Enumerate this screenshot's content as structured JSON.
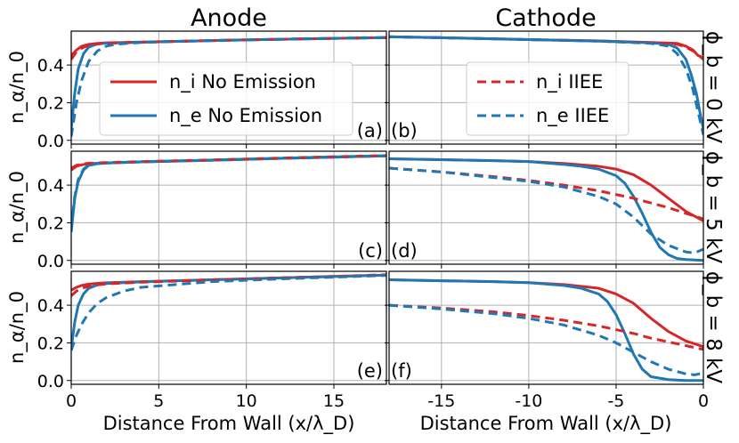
{
  "colors": {
    "ion": "#d62728",
    "electron": "#1f77b4",
    "grid": "#b0b0b0"
  },
  "labels": {
    "anode": "Anode",
    "cathode": "Cathode",
    "xlabel": "Distance From Wall (x/λ_D)",
    "ylabel": "n_α/n_0",
    "rows": [
      "ϕ_b = 0 kV",
      "ϕ_b = 5 kV",
      "ϕ_b = 8 kV"
    ],
    "panels": [
      "(a)",
      "(b)",
      "(c)",
      "(d)",
      "(e)",
      "(f)"
    ]
  },
  "legend": {
    "left": [
      {
        "label": "n_i No Emission",
        "series": "ni_noemission"
      },
      {
        "label": "n_e No Emission",
        "series": "ne_noemission"
      }
    ],
    "right": [
      {
        "label": "n_i IIEE",
        "series": "ni_iiee"
      },
      {
        "label": "n_e IIEE",
        "series": "ne_iiee"
      }
    ]
  },
  "chart_data": [
    {
      "type": "line",
      "panel": "(a)",
      "region": "anode",
      "bias": "0 kV",
      "xlim": [
        0,
        18
      ],
      "ylim": [
        -0.02,
        0.58
      ],
      "xticks": [
        0,
        5,
        10,
        15
      ],
      "yticks": [
        0.0,
        0.2,
        0.4
      ],
      "series": [
        {
          "name": "n_i No Emission",
          "style": "solid",
          "color": "#d62728",
          "x": [
            0,
            0.3,
            0.6,
            1,
            1.5,
            2,
            4,
            8,
            12,
            16,
            18
          ],
          "y": [
            0.45,
            0.48,
            0.5,
            0.51,
            0.515,
            0.518,
            0.522,
            0.53,
            0.537,
            0.543,
            0.546
          ]
        },
        {
          "name": "n_e No Emission",
          "style": "solid",
          "color": "#1f77b4",
          "x": [
            0,
            0.2,
            0.4,
            0.7,
            1,
            1.5,
            2,
            4,
            8,
            12,
            16,
            18
          ],
          "y": [
            0.06,
            0.25,
            0.38,
            0.46,
            0.495,
            0.512,
            0.516,
            0.521,
            0.53,
            0.537,
            0.543,
            0.546
          ]
        },
        {
          "name": "n_i IIEE",
          "style": "dashed",
          "color": "#d62728",
          "x": [
            0,
            0.3,
            0.6,
            1,
            1.5,
            2,
            4,
            8,
            12,
            16,
            18
          ],
          "y": [
            0.43,
            0.47,
            0.49,
            0.505,
            0.512,
            0.516,
            0.521,
            0.53,
            0.537,
            0.543,
            0.546
          ]
        },
        {
          "name": "n_e IIEE",
          "style": "dashed",
          "color": "#1f77b4",
          "x": [
            0,
            0.3,
            0.6,
            1,
            1.5,
            2,
            2.5,
            4,
            8,
            12,
            16,
            18
          ],
          "y": [
            0.02,
            0.2,
            0.32,
            0.42,
            0.475,
            0.5,
            0.51,
            0.52,
            0.53,
            0.537,
            0.543,
            0.546
          ]
        }
      ]
    },
    {
      "type": "line",
      "panel": "(b)",
      "region": "cathode",
      "bias": "0 kV",
      "xlim": [
        -18,
        0
      ],
      "ylim": [
        -0.02,
        0.58
      ],
      "xticks": [
        -15,
        -10,
        -5,
        0
      ],
      "yticks": [
        0.0,
        0.2,
        0.4
      ],
      "series": [
        {
          "name": "n_i No Emission",
          "style": "solid",
          "color": "#d62728",
          "x": [
            -18,
            -15,
            -10,
            -6,
            -3,
            -1.5,
            -1,
            -0.6,
            -0.3,
            0
          ],
          "y": [
            0.55,
            0.545,
            0.535,
            0.528,
            0.52,
            0.515,
            0.5,
            0.48,
            0.45,
            0.44
          ]
        },
        {
          "name": "n_e No Emission",
          "style": "solid",
          "color": "#1f77b4",
          "x": [
            -18,
            -15,
            -10,
            -6,
            -3,
            -2,
            -1.5,
            -1,
            -0.7,
            -0.4,
            -0.2,
            0
          ],
          "y": [
            0.55,
            0.545,
            0.535,
            0.527,
            0.518,
            0.51,
            0.49,
            0.43,
            0.35,
            0.25,
            0.15,
            0.06
          ]
        },
        {
          "name": "n_i IIEE",
          "style": "dashed",
          "color": "#d62728",
          "x": [
            -18,
            -15,
            -10,
            -6,
            -3,
            -1.5,
            -1,
            -0.5,
            0
          ],
          "y": [
            0.55,
            0.545,
            0.535,
            0.528,
            0.518,
            0.51,
            0.495,
            0.47,
            0.43
          ]
        },
        {
          "name": "n_e IIEE",
          "style": "dashed",
          "color": "#1f77b4",
          "x": [
            -18,
            -15,
            -10,
            -6,
            -3,
            -2,
            -1.5,
            -1,
            -0.6,
            -0.3,
            0
          ],
          "y": [
            0.55,
            0.545,
            0.535,
            0.527,
            0.515,
            0.5,
            0.46,
            0.38,
            0.27,
            0.15,
            0.03
          ]
        }
      ]
    },
    {
      "type": "line",
      "panel": "(c)",
      "region": "anode",
      "bias": "5 kV",
      "xlim": [
        0,
        18
      ],
      "ylim": [
        -0.02,
        0.58
      ],
      "xticks": [
        0,
        5,
        10,
        15
      ],
      "yticks": [
        0.0,
        0.2,
        0.4
      ],
      "series": [
        {
          "name": "n_i No Emission",
          "style": "solid",
          "color": "#d62728",
          "x": [
            0,
            0.3,
            0.6,
            1,
            1.5,
            2,
            4,
            8,
            12,
            16,
            18
          ],
          "y": [
            0.48,
            0.5,
            0.508,
            0.513,
            0.516,
            0.518,
            0.523,
            0.532,
            0.542,
            0.551,
            0.555
          ]
        },
        {
          "name": "n_e No Emission",
          "style": "solid",
          "color": "#1f77b4",
          "x": [
            0,
            0.2,
            0.4,
            0.7,
            1,
            1.5,
            2,
            4,
            8,
            12,
            16,
            18
          ],
          "y": [
            0.15,
            0.33,
            0.42,
            0.48,
            0.505,
            0.514,
            0.517,
            0.523,
            0.532,
            0.542,
            0.551,
            0.555
          ]
        },
        {
          "name": "n_i IIEE",
          "style": "dashed",
          "color": "#d62728",
          "x": [
            0,
            0.3,
            0.6,
            1,
            1.5,
            2,
            4,
            8,
            12,
            16,
            18
          ],
          "y": [
            0.49,
            0.505,
            0.512,
            0.516,
            0.518,
            0.52,
            0.525,
            0.534,
            0.544,
            0.553,
            0.557
          ]
        },
        {
          "name": "n_e IIEE",
          "style": "dashed",
          "color": "#1f77b4",
          "x": [
            0,
            0.2,
            0.4,
            0.7,
            1,
            1.5,
            2,
            4,
            8,
            12,
            16,
            18
          ],
          "y": [
            0.17,
            0.34,
            0.43,
            0.485,
            0.505,
            0.515,
            0.518,
            0.524,
            0.533,
            0.543,
            0.552,
            0.556
          ]
        }
      ]
    },
    {
      "type": "line",
      "panel": "(d)",
      "region": "cathode",
      "bias": "5 kV",
      "xlim": [
        -18,
        0
      ],
      "ylim": [
        -0.02,
        0.58
      ],
      "xticks": [
        -15,
        -10,
        -5,
        0
      ],
      "yticks": [
        0.0,
        0.2,
        0.4
      ],
      "series": [
        {
          "name": "n_i No Emission",
          "style": "solid",
          "color": "#d62728",
          "x": [
            -18,
            -15,
            -12,
            -10,
            -8,
            -6,
            -5,
            -4,
            -3,
            -2,
            -1,
            0
          ],
          "y": [
            0.54,
            0.535,
            0.53,
            0.525,
            0.515,
            0.5,
            0.485,
            0.455,
            0.4,
            0.33,
            0.26,
            0.21
          ]
        },
        {
          "name": "n_e No Emission",
          "style": "solid",
          "color": "#1f77b4",
          "x": [
            -18,
            -15,
            -12,
            -10,
            -8,
            -7,
            -6,
            -5,
            -4.5,
            -4,
            -3.5,
            -3,
            -2.5,
            -2,
            -1.5,
            -1,
            0
          ],
          "y": [
            0.54,
            0.535,
            0.53,
            0.525,
            0.51,
            0.5,
            0.485,
            0.45,
            0.41,
            0.34,
            0.25,
            0.15,
            0.07,
            0.03,
            0.01,
            0.005,
            0.0
          ]
        },
        {
          "name": "n_i IIEE",
          "style": "dashed",
          "color": "#d62728",
          "x": [
            -18,
            -15,
            -12,
            -10,
            -8,
            -6,
            -4,
            -3,
            -2,
            -1,
            0
          ],
          "y": [
            0.49,
            0.47,
            0.445,
            0.425,
            0.4,
            0.37,
            0.33,
            0.305,
            0.28,
            0.25,
            0.22
          ]
        },
        {
          "name": "n_e IIEE",
          "style": "dashed",
          "color": "#1f77b4",
          "x": [
            -18,
            -15,
            -12,
            -10,
            -8,
            -6,
            -5,
            -4,
            -3,
            -2,
            -1,
            -0.5,
            0
          ],
          "y": [
            0.49,
            0.47,
            0.44,
            0.42,
            0.39,
            0.34,
            0.3,
            0.23,
            0.14,
            0.08,
            0.045,
            0.04,
            0.06
          ]
        }
      ]
    },
    {
      "type": "line",
      "panel": "(e)",
      "region": "anode",
      "bias": "8 kV",
      "xlim": [
        0,
        18
      ],
      "ylim": [
        -0.02,
        0.58
      ],
      "xticks": [
        0,
        5,
        10,
        15
      ],
      "yticks": [
        0.0,
        0.2,
        0.4
      ],
      "series": [
        {
          "name": "n_i No Emission",
          "style": "solid",
          "color": "#d62728",
          "x": [
            0,
            0.3,
            0.6,
            1,
            1.5,
            2,
            4,
            8,
            12,
            16,
            18
          ],
          "y": [
            0.48,
            0.495,
            0.505,
            0.512,
            0.516,
            0.519,
            0.525,
            0.535,
            0.545,
            0.555,
            0.56
          ]
        },
        {
          "name": "n_e No Emission",
          "style": "solid",
          "color": "#1f77b4",
          "x": [
            0,
            0.2,
            0.4,
            0.7,
            1,
            1.5,
            2,
            4,
            8,
            12,
            16,
            18
          ],
          "y": [
            0.17,
            0.31,
            0.4,
            0.46,
            0.49,
            0.508,
            0.515,
            0.524,
            0.535,
            0.545,
            0.555,
            0.56
          ]
        },
        {
          "name": "n_i IIEE",
          "style": "dashed",
          "color": "#d62728",
          "x": [
            0,
            0.3,
            0.6,
            1,
            1.5,
            2,
            4,
            8,
            12,
            16,
            18
          ],
          "y": [
            0.45,
            0.475,
            0.49,
            0.5,
            0.508,
            0.513,
            0.522,
            0.534,
            0.545,
            0.556,
            0.562
          ]
        },
        {
          "name": "n_e IIEE",
          "style": "dashed",
          "color": "#1f77b4",
          "x": [
            0,
            0.3,
            0.6,
            1,
            1.5,
            2,
            3,
            4,
            8,
            12,
            16,
            18
          ],
          "y": [
            0.16,
            0.24,
            0.3,
            0.36,
            0.41,
            0.44,
            0.475,
            0.495,
            0.525,
            0.54,
            0.552,
            0.558
          ]
        }
      ]
    },
    {
      "type": "line",
      "panel": "(f)",
      "region": "cathode",
      "bias": "8 kV",
      "xlim": [
        -18,
        0
      ],
      "ylim": [
        -0.02,
        0.58
      ],
      "xticks": [
        -15,
        -10,
        -5,
        0
      ],
      "yticks": [
        0.0,
        0.2,
        0.4
      ],
      "series": [
        {
          "name": "n_i No Emission",
          "style": "solid",
          "color": "#d62728",
          "x": [
            -18,
            -15,
            -12,
            -10,
            -8,
            -6,
            -5,
            -4,
            -3,
            -2,
            -1,
            0
          ],
          "y": [
            0.535,
            0.53,
            0.525,
            0.52,
            0.51,
            0.49,
            0.46,
            0.41,
            0.33,
            0.26,
            0.21,
            0.18
          ]
        },
        {
          "name": "n_e No Emission",
          "style": "solid",
          "color": "#1f77b4",
          "x": [
            -18,
            -15,
            -12,
            -10,
            -8,
            -7,
            -6,
            -5.5,
            -5,
            -4.5,
            -4,
            -3.5,
            -3,
            -2,
            -1,
            0
          ],
          "y": [
            0.535,
            0.53,
            0.525,
            0.52,
            0.505,
            0.49,
            0.46,
            0.42,
            0.35,
            0.25,
            0.14,
            0.06,
            0.02,
            0.005,
            0.0,
            0.0
          ]
        },
        {
          "name": "n_i IIEE",
          "style": "dashed",
          "color": "#d62728",
          "x": [
            -18,
            -15,
            -12,
            -10,
            -8,
            -6,
            -4,
            -3,
            -2,
            -1,
            0
          ],
          "y": [
            0.4,
            0.385,
            0.365,
            0.345,
            0.32,
            0.29,
            0.25,
            0.225,
            0.205,
            0.185,
            0.165
          ]
        },
        {
          "name": "n_e IIEE",
          "style": "dashed",
          "color": "#1f77b4",
          "x": [
            -18,
            -15,
            -12,
            -10,
            -8,
            -6,
            -5,
            -4,
            -3,
            -2,
            -1,
            -0.5,
            0
          ],
          "y": [
            0.4,
            0.38,
            0.355,
            0.33,
            0.295,
            0.24,
            0.2,
            0.15,
            0.1,
            0.06,
            0.035,
            0.03,
            0.04
          ]
        }
      ]
    }
  ]
}
